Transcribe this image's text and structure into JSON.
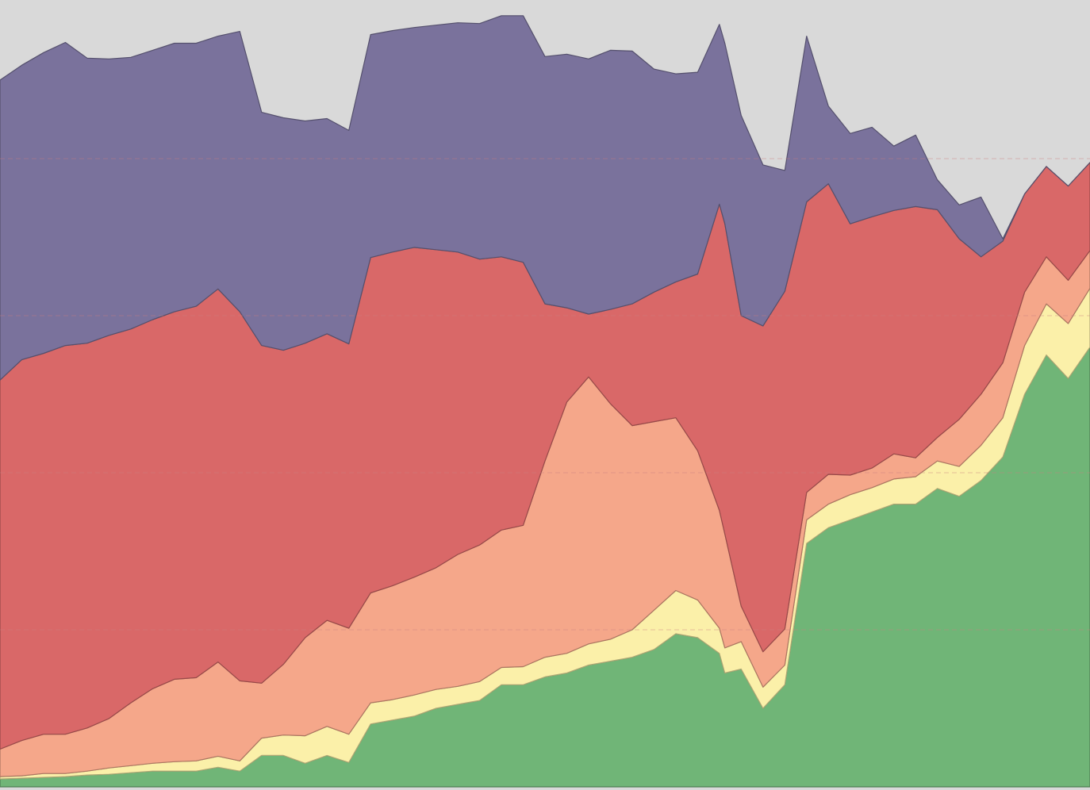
{
  "chart_data": {
    "type": "area",
    "stacked": true,
    "title": "",
    "xlabel": "",
    "ylabel": "",
    "grid": true,
    "legend": "none",
    "xlim": [
      0,
      100
    ],
    "ylim": [
      0,
      100
    ],
    "gridlines_y": [
      20,
      40,
      60,
      80
    ],
    "background_color": "#d9d9d9",
    "x": [
      0,
      2,
      4,
      6,
      8,
      10,
      12,
      14,
      16,
      18,
      20,
      22,
      24,
      26,
      28,
      30,
      32,
      34,
      36,
      38,
      40,
      42,
      44,
      46,
      48,
      50,
      52,
      54,
      56,
      58,
      60,
      62,
      64,
      66,
      66.5,
      68,
      70,
      72,
      74,
      76,
      78,
      80,
      82,
      84,
      86,
      88,
      90,
      92,
      94,
      96,
      98,
      100
    ],
    "series": [
      {
        "color": "#70b577",
        "values": [
          1,
          1.1,
          1.2,
          1.3,
          1.5,
          1.6,
          1.8,
          2,
          2,
          2,
          2.5,
          2,
          4,
          4,
          3,
          4,
          3.1,
          8,
          8.5,
          9,
          10,
          10.5,
          11,
          13,
          13,
          14,
          14.5,
          15.5,
          16,
          16.5,
          17.5,
          19.5,
          19,
          17,
          14.5,
          15,
          10,
          13,
          31,
          33,
          34,
          35,
          36,
          36,
          38,
          37,
          39,
          42,
          50,
          55,
          52,
          56
        ]
      },
      {
        "color": "#fbf0a9",
        "values": [
          0.3,
          0.3,
          0.5,
          0.4,
          0.5,
          0.8,
          0.9,
          1,
          1.2,
          1.3,
          1.4,
          1.3,
          2.2,
          2.6,
          3.5,
          3.7,
          3.6,
          2.7,
          2.6,
          2.7,
          2.4,
          2.3,
          2.4,
          2.2,
          2.3,
          2.5,
          2.5,
          2.7,
          2.8,
          3.5,
          5,
          5.5,
          4.8,
          3.2,
          3.2,
          3.5,
          2.7,
          2.5,
          3,
          3,
          3.2,
          3.1,
          3.2,
          3.5,
          3.5,
          3.8,
          4.5,
          5,
          6.2,
          6.5,
          7,
          7.5
        ]
      },
      {
        "color": "#f5a78a",
        "values": [
          3.5,
          4.5,
          5,
          5,
          5.5,
          6.3,
          8,
          9.5,
          10.5,
          10.6,
          12,
          10.2,
          7,
          9,
          12.5,
          13.5,
          13.5,
          14,
          14.5,
          15,
          15.5,
          16.8,
          17.4,
          17.5,
          18,
          25,
          32,
          34,
          30,
          26,
          24,
          22,
          19,
          15,
          14.5,
          4.5,
          4.5,
          4.6,
          3.5,
          3.8,
          2.5,
          2.5,
          3.2,
          2.4,
          3,
          6,
          6.5,
          7,
          6.8,
          6,
          5.5,
          4.8
        ]
      },
      {
        "color": "#d96868",
        "values": [
          47,
          48.5,
          48.5,
          49.5,
          49,
          48.8,
          47.6,
          47,
          46.8,
          47.3,
          47.5,
          47,
          43,
          40,
          37.5,
          36.5,
          36.2,
          42.7,
          42.5,
          42,
          40.5,
          38.5,
          36.4,
          34.8,
          33.5,
          20,
          12,
          8,
          12,
          15.5,
          16.5,
          17.3,
          22.5,
          39,
          39.5,
          37,
          41.5,
          43,
          37,
          37,
          32,
          32,
          31,
          32,
          29,
          23,
          17.5,
          15.5,
          12.5,
          11.5,
          12,
          11.2
        ]
      },
      {
        "color": "#7a729c",
        "values": [
          38.2,
          37.5,
          38.3,
          38.6,
          36.3,
          35.2,
          34.6,
          34.3,
          34.2,
          33.5,
          32.2,
          35.7,
          29.7,
          29.6,
          28.3,
          27.4,
          27.2,
          28.4,
          28.2,
          28,
          28.6,
          29.2,
          30,
          30.7,
          31.4,
          31.5,
          32.3,
          32.5,
          33,
          32.2,
          28.4,
          26.5,
          25.7,
          22.9,
          23,
          25.5,
          20.5,
          15.4,
          21.1,
          9.9,
          11.5,
          11.4,
          8.2,
          9.1,
          3.8,
          4.3,
          7.6,
          0.3,
          0,
          0,
          0,
          0
        ]
      }
    ]
  }
}
